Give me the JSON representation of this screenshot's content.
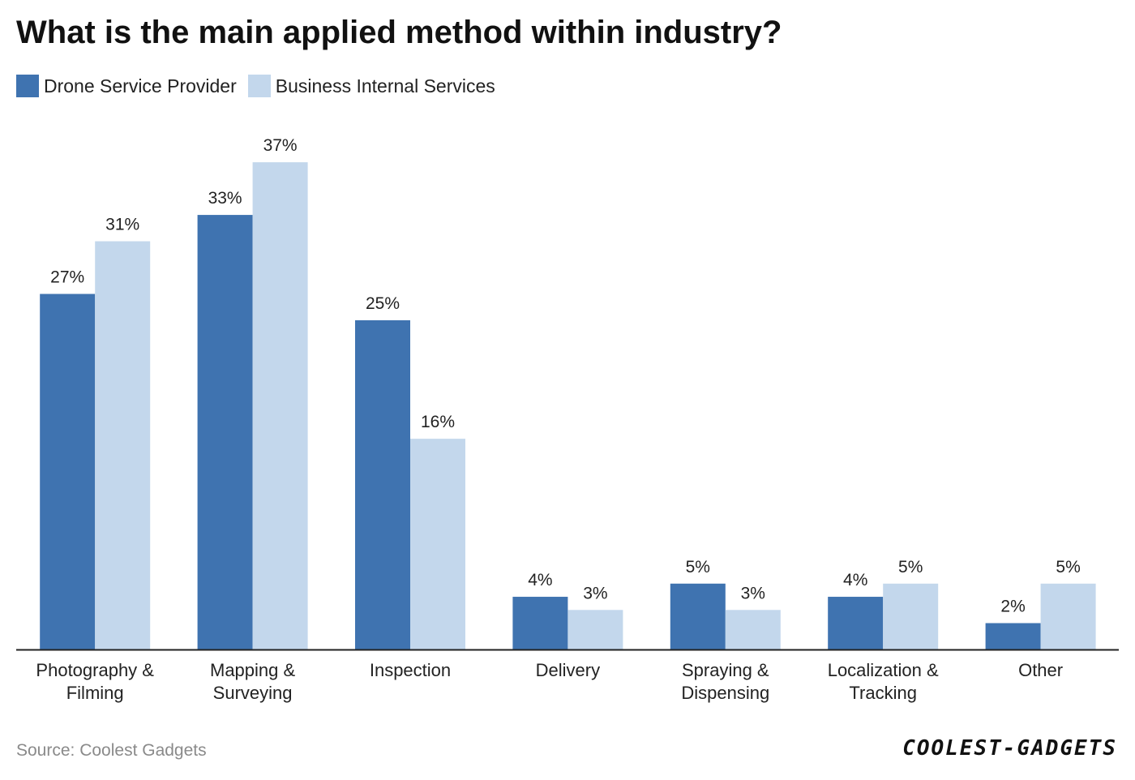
{
  "title": "What is the main applied method within industry?",
  "source": "Source: Coolest Gadgets",
  "brand": "COOLEST-GADGETS",
  "colors": {
    "series1": "#3f73b0",
    "series2": "#c3d7ec",
    "axis": "#222222"
  },
  "chart_data": {
    "type": "bar",
    "title": "What is the main applied method within industry?",
    "categories": [
      [
        "Photography &",
        "Filming"
      ],
      [
        "Mapping &",
        "Surveying"
      ],
      [
        "Inspection"
      ],
      [
        "Delivery"
      ],
      [
        "Spraying &",
        "Dispensing"
      ],
      [
        "Localization &",
        "Tracking"
      ],
      [
        "Other"
      ]
    ],
    "series": [
      {
        "name": "Drone Service Provider",
        "values": [
          27,
          33,
          25,
          4,
          5,
          4,
          2
        ]
      },
      {
        "name": "Business Internal Services",
        "values": [
          31,
          37,
          16,
          3,
          3,
          5,
          5
        ]
      }
    ],
    "value_suffix": "%",
    "ylim": [
      0,
      40
    ],
    "grid": false,
    "legend": "top-left"
  }
}
